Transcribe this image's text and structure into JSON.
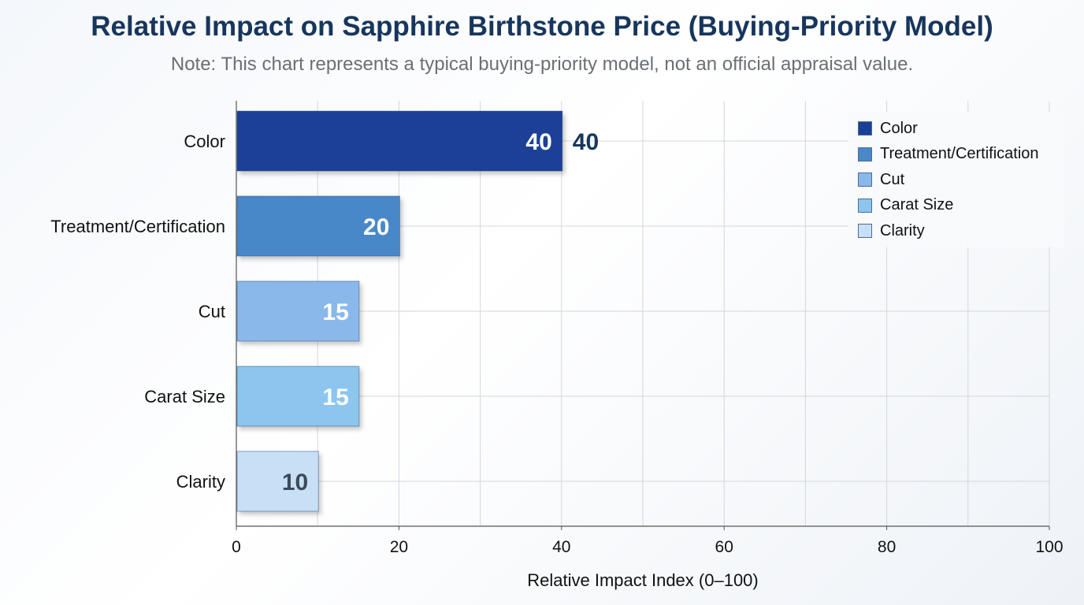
{
  "chart_data": {
    "type": "bar",
    "orientation": "horizontal",
    "title": "Relative Impact on Sapphire Birthstone Price (Buying-Priority Model)",
    "subtitle": "Note: This chart represents a typical buying-priority model, not an official appraisal value.",
    "xlabel": "Relative Impact Index (0–100)",
    "ylabel": "",
    "xlim": [
      0,
      100
    ],
    "xticks": [
      0,
      20,
      40,
      60,
      80,
      100
    ],
    "grid": true,
    "legend_placement": "top-right",
    "categories": [
      "Color",
      "Treatment/Certification",
      "Cut",
      "Carat Size",
      "Clarity"
    ],
    "values": [
      40,
      20,
      15,
      15,
      10
    ],
    "colors": [
      "#1a3f96",
      "#4a88c8",
      "#8ab8ea",
      "#8cc6ee",
      "#c8e0f6"
    ],
    "label_colors": [
      "#ffffff",
      "#ffffff",
      "#ffffff",
      "#ffffff",
      "#3d4a5a"
    ],
    "extra_label": {
      "category": "Color",
      "text": "40"
    },
    "legend": [
      "Color",
      "Treatment/Certification",
      "Cut",
      "Carat Size",
      "Clarity"
    ]
  }
}
